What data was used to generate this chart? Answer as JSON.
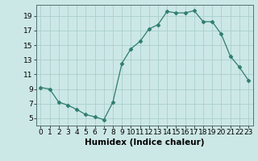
{
  "x": [
    0,
    1,
    2,
    3,
    4,
    5,
    6,
    7,
    8,
    9,
    10,
    11,
    12,
    13,
    14,
    15,
    16,
    17,
    18,
    19,
    20,
    21,
    22,
    23
  ],
  "y": [
    9.2,
    9.0,
    7.2,
    6.8,
    6.2,
    5.5,
    5.2,
    4.8,
    7.2,
    12.5,
    14.5,
    15.5,
    17.2,
    17.8,
    19.6,
    19.4,
    19.4,
    19.7,
    18.2,
    18.2,
    16.5,
    13.5,
    12.0,
    10.2
  ],
  "line_color": "#2e7d6e",
  "marker": "D",
  "marker_size": 2.5,
  "bg_color": "#cce8e6",
  "grid_color": "#aacfcc",
  "xlabel": "Humidex (Indice chaleur)",
  "xlim": [
    -0.5,
    23.5
  ],
  "ylim": [
    4.0,
    20.5
  ],
  "yticks": [
    5,
    7,
    9,
    11,
    13,
    15,
    17,
    19
  ],
  "xticks": [
    0,
    1,
    2,
    3,
    4,
    5,
    6,
    7,
    8,
    9,
    10,
    11,
    12,
    13,
    14,
    15,
    16,
    17,
    18,
    19,
    20,
    21,
    22,
    23
  ],
  "xlabel_fontsize": 7.5,
  "tick_fontsize": 6.5
}
